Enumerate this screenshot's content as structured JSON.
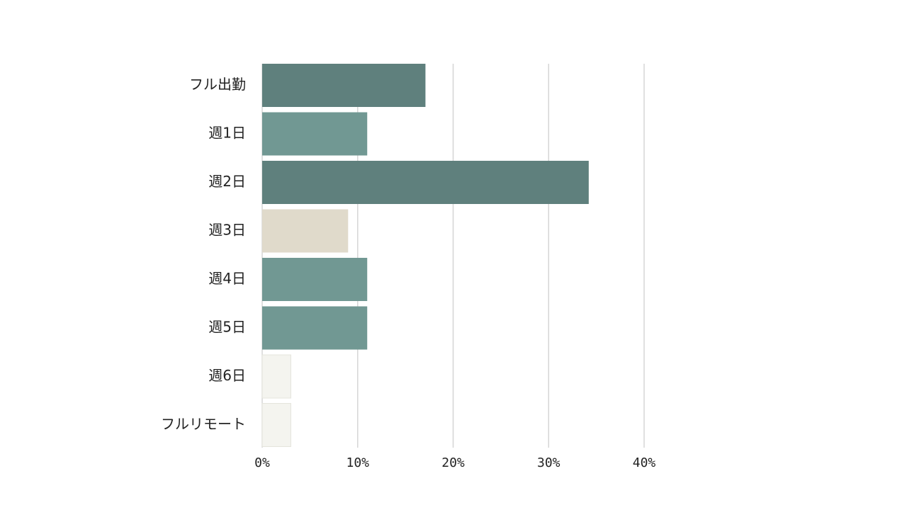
{
  "chart_data": {
    "type": "bar",
    "orientation": "horizontal",
    "categories": [
      "フル出勤",
      "週1日",
      "週2日",
      "週3日",
      "週4日",
      "週5日",
      "週6日",
      "フルリモート"
    ],
    "values": [
      17.1,
      11.0,
      34.2,
      9.0,
      11.0,
      11.0,
      3.0,
      3.0
    ],
    "colors": [
      "#5f807d",
      "#719893",
      "#5f807d",
      "#e0dacb",
      "#719893",
      "#719893",
      "#f4f4ef",
      "#f4f4ef"
    ],
    "xlim": [
      0,
      40
    ],
    "x_ticks": [
      0,
      10,
      20,
      30,
      40
    ],
    "x_tick_labels": [
      "0%",
      "10%",
      "20%",
      "30%",
      "40%"
    ],
    "grid": true
  }
}
